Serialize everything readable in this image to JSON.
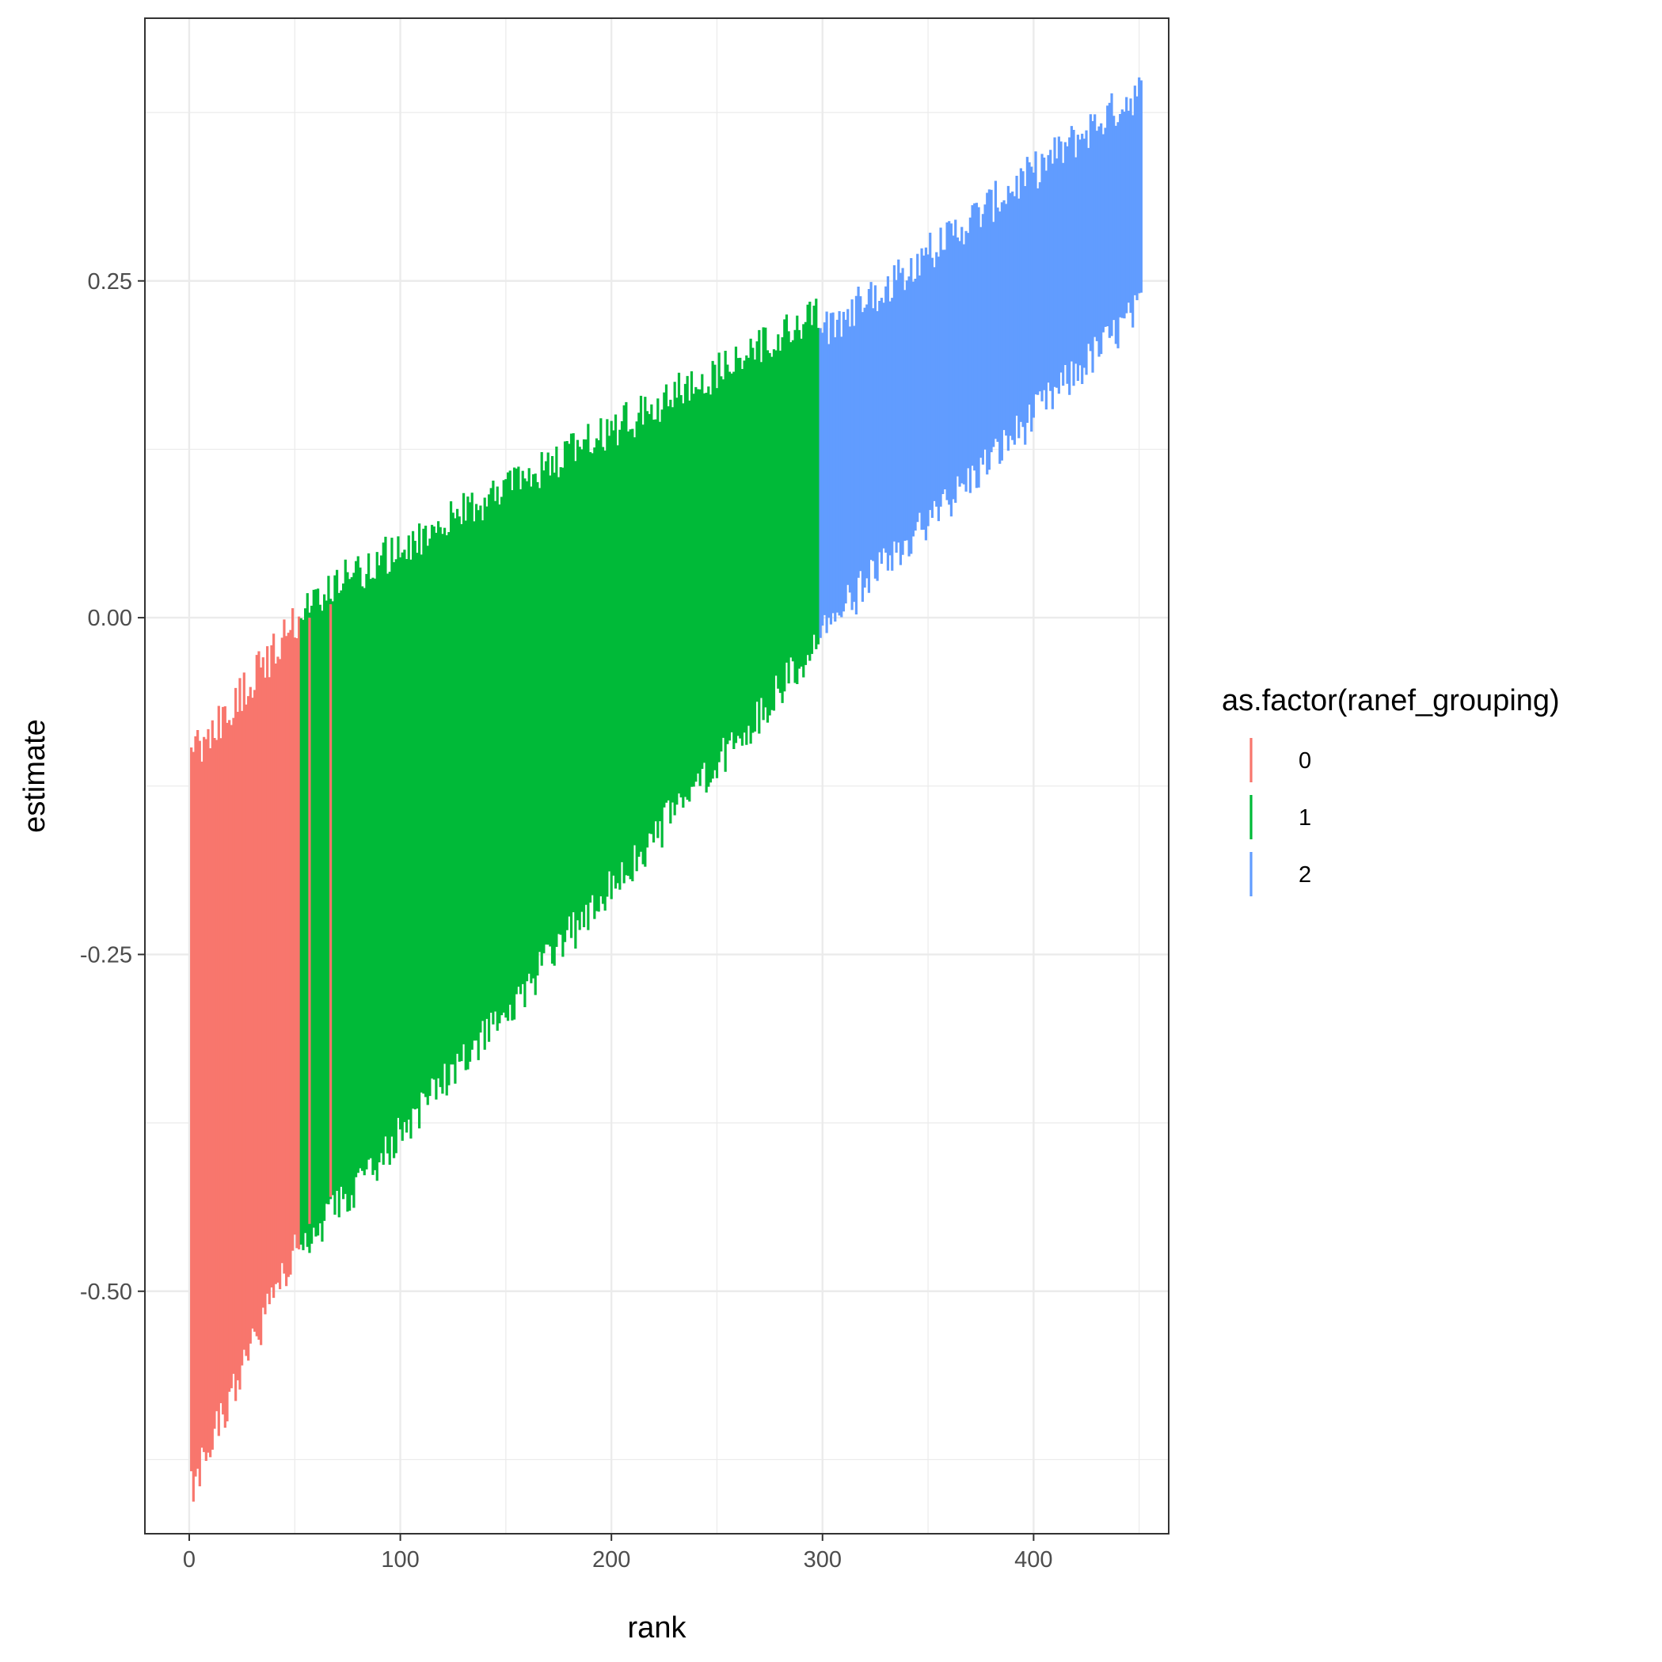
{
  "chart_data": {
    "type": "errorbar",
    "xlabel": "rank",
    "ylabel": "estimate",
    "xlim": [
      -21,
      464
    ],
    "ylim": [
      -0.68,
      0.445
    ],
    "x_ticks": [
      0,
      100,
      200,
      300,
      400
    ],
    "x_tick_labels": [
      "0",
      "100",
      "200",
      "300",
      "400"
    ],
    "y_ticks": [
      -0.5,
      -0.25,
      0.0,
      0.25
    ],
    "y_tick_labels": [
      "-0.50",
      "-0.25",
      "0.00",
      "0.25"
    ],
    "grid": true,
    "legend": {
      "title": "as.factor(ranef_grouping)",
      "position": "right",
      "entries": [
        {
          "label": "0",
          "color": "#F8766D"
        },
        {
          "label": "1",
          "color": "#00BA38"
        },
        {
          "label": "2",
          "color": "#619CFF"
        }
      ]
    },
    "series": [
      {
        "group": "0",
        "color": "#F8766D",
        "ranks": [
          1,
          52
        ],
        "lower": [
          -0.647,
          -0.46
        ],
        "upper": [
          -0.102,
          -0.002
        ]
      },
      {
        "group": "1",
        "color": "#00BA38",
        "ranks": [
          53,
          298
        ],
        "lower": [
          -0.47,
          -0.02
        ],
        "upper": [
          0.01,
          0.225
        ]
      },
      {
        "group": "2",
        "color": "#619CFF",
        "ranks": [
          299,
          451
        ],
        "lower": [
          -0.01,
          0.23
        ],
        "upper": [
          0.21,
          0.392
        ]
      }
    ],
    "notable_bars": [
      {
        "rank": 57,
        "group": "0",
        "lower": -0.45,
        "upper": 0.0
      },
      {
        "rank": 67,
        "group": "0",
        "lower": -0.43,
        "upper": 0.01
      },
      {
        "rank": 299,
        "group": "2",
        "lower": -0.015,
        "upper": 0.21
      },
      {
        "rank": 304,
        "group": "2",
        "lower": -0.005,
        "upper": 0.215
      }
    ]
  }
}
